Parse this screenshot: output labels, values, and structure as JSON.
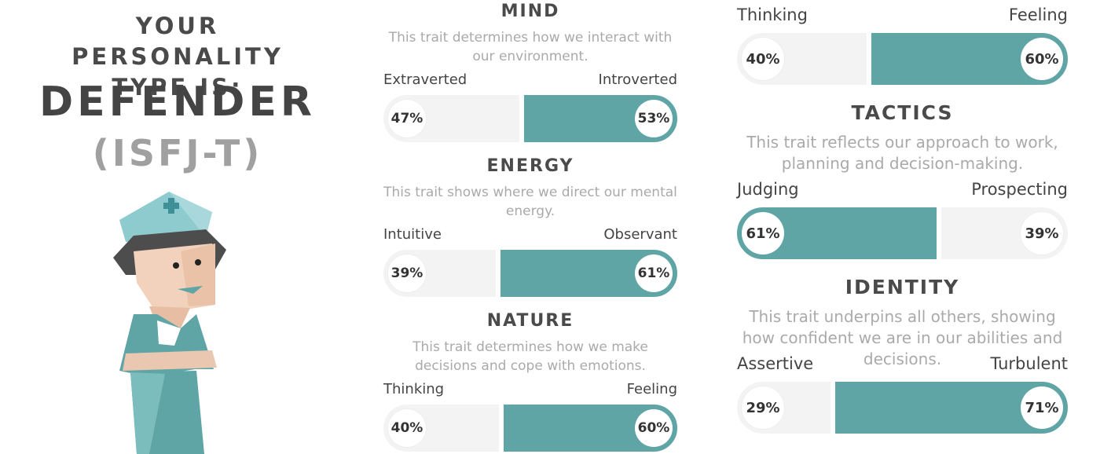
{
  "header": {
    "title": "YOUR PERSONALITY TYPE IS:",
    "type": "DEFENDER",
    "code": "(ISFJ-T)"
  },
  "traits": [
    {
      "title": "MIND",
      "description": "This trait determines how we interact with our environment.",
      "left": {
        "name": "Extraverted",
        "value": 47,
        "label": "47%"
      },
      "right": {
        "name": "Introverted",
        "value": 53,
        "label": "53%"
      }
    },
    {
      "title": "ENERGY",
      "description": "This trait shows where we direct our mental energy.",
      "left": {
        "name": "Intuitive",
        "value": 39,
        "label": "39%"
      },
      "right": {
        "name": "Observant",
        "value": 61,
        "label": "61%"
      }
    },
    {
      "title": "NATURE",
      "description": "This trait determines how we make decisions and cope with emotions.",
      "left": {
        "name": "Thinking",
        "value": 40,
        "label": "40%"
      },
      "right": {
        "name": "Feeling",
        "value": 60,
        "label": "60%"
      }
    },
    {
      "left": {
        "name": "Thinking",
        "value": 40,
        "label": "40%"
      },
      "right": {
        "name": "Feeling",
        "value": 60,
        "label": "60%"
      }
    },
    {
      "title": "TACTICS",
      "description": "This trait reflects our approach to work, planning and decision-making.",
      "left": {
        "name": "Judging",
        "value": 61,
        "label": "61%"
      },
      "right": {
        "name": "Prospecting",
        "value": 39,
        "label": "39%"
      }
    },
    {
      "title": "IDENTITY",
      "description": "This trait underpins all others, showing how confident we are in our abilities and decisions.",
      "left": {
        "name": "Assertive",
        "value": 29,
        "label": "29%"
      },
      "right": {
        "name": "Turbulent",
        "value": 71,
        "label": "71%"
      }
    }
  ]
}
